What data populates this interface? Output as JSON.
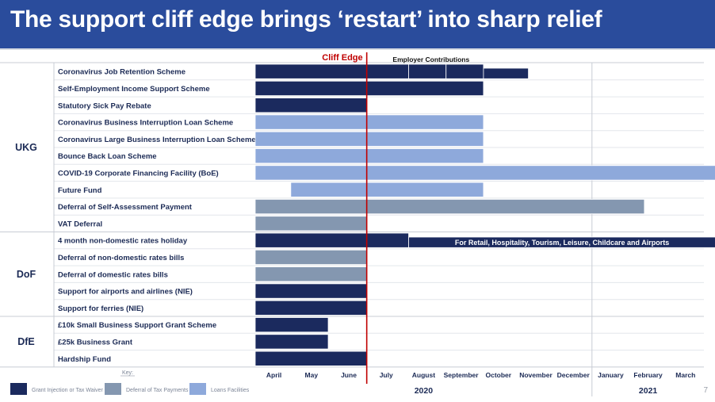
{
  "title": "The support cliff edge brings ‘restart’ into sharp relief",
  "page_number": "7",
  "colors": {
    "grant": "#1b2a5e",
    "deferral": "#8497b0",
    "loans": "#8ea9db",
    "cliff": "#c00000",
    "title_bg": "#2a4c9c"
  },
  "chart_data": {
    "type": "gantt",
    "cliff_edge": {
      "label": "Cliff Edge",
      "month_index": 2.98
    },
    "months": [
      "April",
      "May",
      "June",
      "July",
      "August",
      "September",
      "October",
      "November",
      "December",
      "January",
      "February",
      "March"
    ],
    "years": [
      {
        "label": "2020",
        "from_month": 0,
        "to_month": 8
      },
      {
        "label": "2021",
        "from_month": 9,
        "to_month": 11
      }
    ],
    "groups": [
      {
        "name": "UKG",
        "rows": [
          0,
          9
        ]
      },
      {
        "name": "DoF",
        "rows": [
          10,
          14
        ]
      },
      {
        "name": "DfE",
        "rows": [
          15,
          17
        ]
      }
    ],
    "rows": [
      {
        "label": "Coronavirus Job Retention Scheme",
        "bars": [
          {
            "start": 0,
            "end": 4.1,
            "type": "grant"
          },
          {
            "start": 4.1,
            "end": 5.1,
            "type": "grant"
          },
          {
            "start": 5.1,
            "end": 6.1,
            "type": "grant"
          },
          {
            "start": 6.1,
            "end": 7.3,
            "type": "grant",
            "lower": true
          }
        ]
      },
      {
        "label": "Self-Employment Income Support Scheme",
        "bars": [
          {
            "start": 0,
            "end": 6.1,
            "type": "grant"
          }
        ]
      },
      {
        "label": "Statutory Sick Pay Rebate",
        "bars": [
          {
            "start": 0,
            "end": 2.98,
            "type": "grant"
          }
        ]
      },
      {
        "label": "Coronavirus Business Interruption Loan Scheme",
        "bars": [
          {
            "start": 0,
            "end": 6.1,
            "type": "loans"
          }
        ]
      },
      {
        "label": "Coronavirus Large Business Interruption Loan Scheme",
        "bars": [
          {
            "start": 0,
            "end": 6.1,
            "type": "loans"
          }
        ]
      },
      {
        "label": "Bounce Back Loan Scheme",
        "bars": [
          {
            "start": 0,
            "end": 6.1,
            "type": "loans"
          }
        ]
      },
      {
        "label": "COVID-19 Corporate Financing Facility (BoE)",
        "bars": [
          {
            "start": 0,
            "end": 12.3,
            "type": "loans"
          }
        ]
      },
      {
        "label": "Future Fund",
        "bars": [
          {
            "start": 0.95,
            "end": 6.1,
            "type": "loans"
          }
        ]
      },
      {
        "label": "Deferral of Self-Assessment Payment",
        "bars": [
          {
            "start": 0,
            "end": 10.4,
            "type": "deferral"
          }
        ]
      },
      {
        "label": "VAT Deferral",
        "bars": [
          {
            "start": 0,
            "end": 2.98,
            "type": "deferral"
          }
        ]
      },
      {
        "label": "4 month non-domestic rates holiday",
        "bars": [
          {
            "start": 0,
            "end": 4.1,
            "type": "grant"
          },
          {
            "start": 4.1,
            "end": 12.3,
            "type": "grant",
            "lower": true
          }
        ]
      },
      {
        "label": "Deferral of non-domestic rates bills",
        "bars": [
          {
            "start": 0,
            "end": 2.98,
            "type": "deferral"
          }
        ]
      },
      {
        "label": "Deferral of domestic rates bills",
        "bars": [
          {
            "start": 0,
            "end": 2.98,
            "type": "deferral"
          }
        ]
      },
      {
        "label": "Support for airports and airlines (NIE)",
        "bars": [
          {
            "start": 0,
            "end": 2.98,
            "type": "grant"
          }
        ]
      },
      {
        "label": "Support for ferries (NIE)",
        "bars": [
          {
            "start": 0,
            "end": 2.98,
            "type": "grant"
          }
        ]
      },
      {
        "label": "£10k Small Business Support Grant Scheme",
        "bars": [
          {
            "start": 0,
            "end": 1.95,
            "type": "grant"
          }
        ]
      },
      {
        "label": "£25k Business Grant",
        "bars": [
          {
            "start": 0,
            "end": 1.95,
            "type": "grant"
          }
        ]
      },
      {
        "label": "Hardship Fund",
        "bars": [
          {
            "start": 0,
            "end": 2.98,
            "type": "grant"
          }
        ]
      }
    ],
    "annotations": [
      {
        "text": "Employer Contributions",
        "row": 0,
        "position": "above",
        "at_month": 4.7
      },
      {
        "text": "For Retail, Hospitality, Tourism, Leisure, Childcare and Airports",
        "row": 10,
        "position": "inside",
        "at_month": 8.2
      }
    ],
    "legend": {
      "title": "Key:",
      "items": [
        {
          "type": "grant",
          "label": "Grant Injection or Tax Waiver"
        },
        {
          "type": "deferral",
          "label": "Deferral of Tax Payments"
        },
        {
          "type": "loans",
          "label": "Loans Facilities"
        }
      ]
    }
  }
}
